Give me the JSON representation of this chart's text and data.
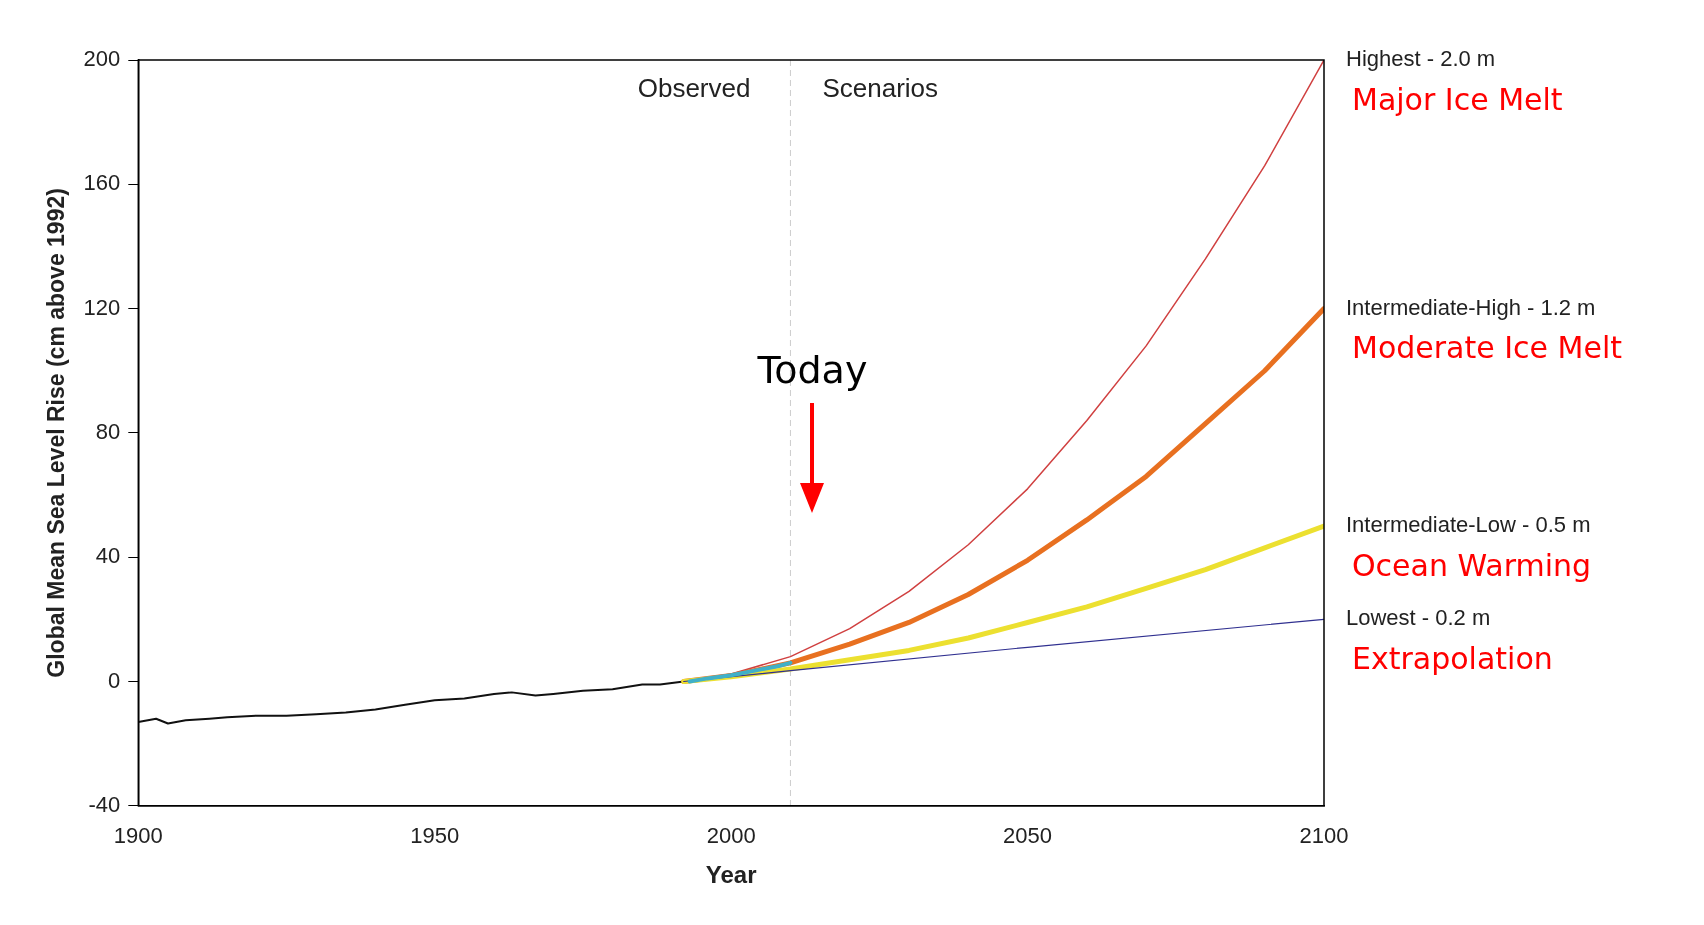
{
  "chart_data": {
    "type": "line",
    "xlabel": "Year",
    "ylabel": "Global Mean Sea Level Rise (cm above 1992)",
    "xlim": [
      1900,
      2100
    ],
    "xticks": [
      1900,
      1950,
      2000,
      2050,
      2100
    ],
    "ylim": [
      -40,
      200
    ],
    "yticks": [
      -40,
      0,
      40,
      80,
      120,
      160,
      200
    ],
    "grid": false,
    "legend": false,
    "marker": "none",
    "line_style": "solid",
    "series": [
      {
        "color": "#111111",
        "x": [
          1900,
          1903,
          1905,
          1908,
          1912,
          1915,
          1920,
          1925,
          1930,
          1935,
          1940,
          1945,
          1950,
          1955,
          1960,
          1963,
          1967,
          1970,
          1975,
          1980,
          1985,
          1988,
          1992
        ],
        "values": [
          -13,
          -12,
          -13.5,
          -12.5,
          -12,
          -11.5,
          -11,
          -11,
          -10.5,
          -10,
          -9,
          -7.5,
          -6,
          -5.5,
          -4,
          -3.5,
          -4.5,
          -4,
          -3,
          -2.5,
          -1,
          -1,
          0
        ]
      },
      {
        "name": "Highest - 2.0 m",
        "color": "#d04040",
        "x": [
          1992,
          2000,
          2010,
          2020,
          2030,
          2040,
          2050,
          2060,
          2070,
          2080,
          2090,
          2100
        ],
        "values": [
          0,
          2.4,
          8,
          17,
          29,
          44,
          62,
          84,
          108,
          136,
          166,
          200
        ]
      },
      {
        "name": "Intermediate-High - 1.2 m",
        "color": "#e87020",
        "x": [
          1992,
          2000,
          2010,
          2020,
          2030,
          2040,
          2050,
          2060,
          2070,
          2080,
          2090,
          2100
        ],
        "values": [
          0,
          1.9,
          6,
          12,
          19,
          28,
          39,
          52,
          66,
          83,
          100,
          120
        ]
      },
      {
        "name": "Intermediate-Low - 0.5 m",
        "color": "#ece030",
        "x": [
          1992,
          2000,
          2010,
          2020,
          2030,
          2040,
          2050,
          2060,
          2070,
          2080,
          2090,
          2100
        ],
        "values": [
          0,
          1.5,
          4,
          7,
          10,
          14,
          19,
          24,
          30,
          36,
          43,
          50
        ]
      },
      {
        "name": "Lowest - 0.2 m",
        "color": "#303090",
        "x": [
          1992,
          2010,
          2050,
          2100
        ],
        "values": [
          0,
          3.5,
          11,
          20
        ]
      },
      {
        "color": "#40b0c8",
        "x": [
          1993,
          1996,
          2000,
          2004,
          2008,
          2010
        ],
        "values": [
          0,
          1,
          2,
          3.5,
          5,
          6
        ]
      }
    ],
    "ref_lines": [
      {
        "axis": "x",
        "value": 2010,
        "color": "#cccccc",
        "line_style": "dashed"
      }
    ],
    "annotations": [
      "Observed",
      "Scenarios",
      "Major Ice Melt",
      "Moderate Ice Melt",
      "Ocean Warming",
      "Extrapolation",
      "Today"
    ]
  }
}
